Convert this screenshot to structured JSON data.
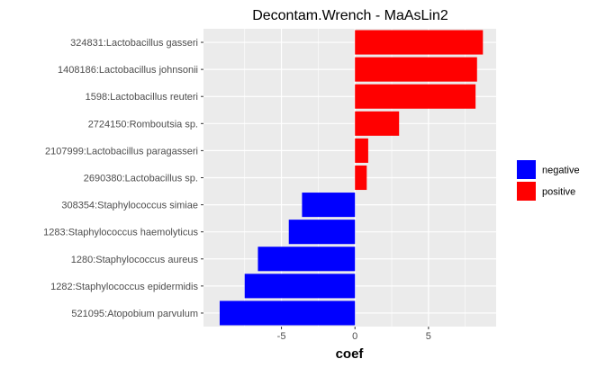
{
  "chart_data": {
    "type": "bar",
    "orientation": "horizontal",
    "title": "Decontam.Wrench - MaAsLin2",
    "xlabel": "coef",
    "ylabel": "",
    "categories": [
      "324831:Lactobacillus gasseri",
      "1408186:Lactobacillus johnsonii",
      "1598:Lactobacillus reuteri",
      "2724150:Romboutsia sp.",
      "2107999:Lactobacillus paragasseri",
      "2690380:Lactobacillus sp.",
      "308354:Staphylococcus simiae",
      "1283:Staphylococcus haemolyticus",
      "1280:Staphylococcus aureus",
      "1282:Staphylococcus epidermidis",
      "521095:Atopobium parvulum"
    ],
    "values": [
      8.7,
      8.3,
      8.2,
      3.0,
      0.9,
      0.8,
      -3.6,
      -4.5,
      -6.6,
      -7.5,
      -9.2
    ],
    "groups": [
      "positive",
      "positive",
      "positive",
      "positive",
      "positive",
      "positive",
      "negative",
      "negative",
      "negative",
      "negative",
      "negative"
    ],
    "xlim": [
      -10.3,
      9.6
    ],
    "xticks": [
      -5,
      0,
      5
    ],
    "xtick_labels": [
      "-5",
      "0",
      "5"
    ],
    "grid": true,
    "legend": {
      "position": "right",
      "entries": [
        {
          "label": "negative",
          "color": "#0000ff"
        },
        {
          "label": "positive",
          "color": "#ff0000"
        }
      ]
    },
    "colors": {
      "negative": "#0000ff",
      "positive": "#ff0000",
      "panel": "#ebebeb",
      "grid": "#ffffff"
    }
  }
}
